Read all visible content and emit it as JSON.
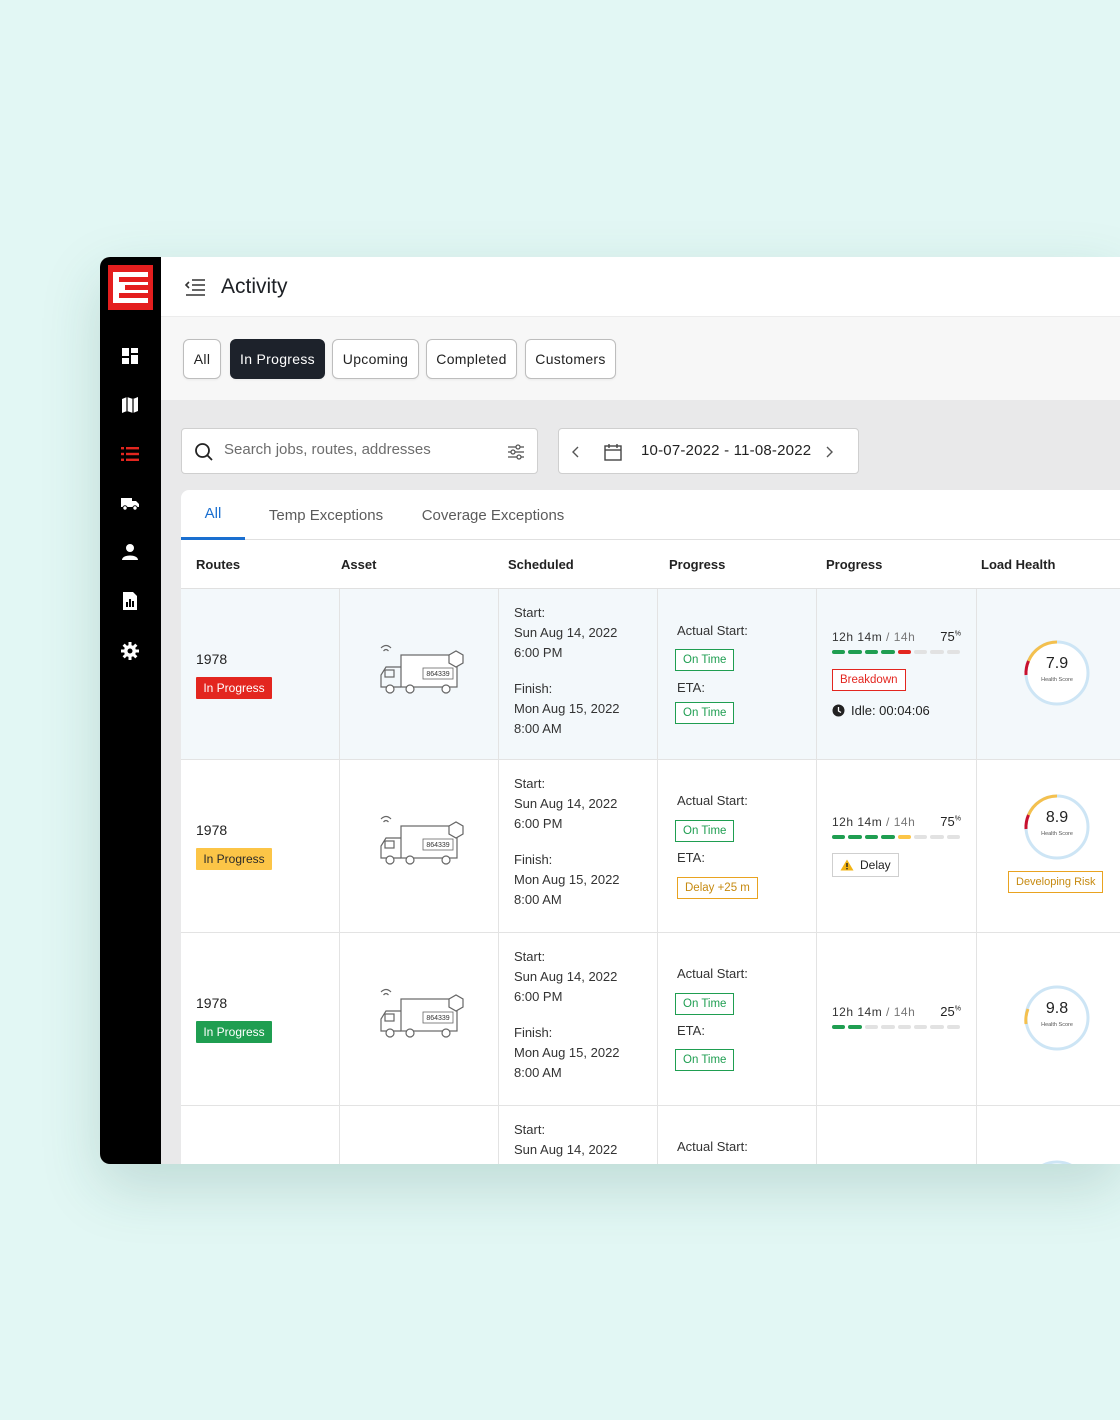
{
  "header": {
    "title": "Activity"
  },
  "filters": [
    "All",
    "In Progress",
    "Upcoming",
    "Completed",
    "Customers"
  ],
  "active_filter": "In Progress",
  "search": {
    "placeholder": "Search jobs, routes, addresses"
  },
  "date_range": "10-07-2022 - 11-08-2022",
  "tabs": [
    "All",
    "Temp Exceptions",
    "Coverage Exceptions"
  ],
  "active_tab": "All",
  "columns": [
    "Routes",
    "Asset",
    "Scheduled",
    "Progress",
    "Progress",
    "Load Health"
  ],
  "rows": [
    {
      "route": "1978",
      "status": "In Progress",
      "status_color": "#e3261f",
      "asset_id": "864339",
      "start_label": "Start:",
      "start_date": "Sun Aug 14, 2022",
      "start_time": "6:00 PM",
      "finish_label": "Finish:",
      "finish_date": "Mon Aug 15, 2022",
      "finish_time": "8:00 AM",
      "actual_start_label": "Actual Start:",
      "actual_start_status": "On Time",
      "eta_label": "ETA:",
      "eta_status": "On Time",
      "time_used": "12h 14m",
      "time_total": "14h",
      "percent": "75",
      "percent_sup": "%",
      "event": "Breakdown",
      "idle": "Idle: 00:04:06",
      "health_score": "7.9",
      "health_label": "Health Score"
    },
    {
      "route": "1978",
      "status": "In Progress",
      "status_color": "#fcc547",
      "asset_id": "864339",
      "start_label": "Start:",
      "start_date": "Sun Aug 14, 2022",
      "start_time": "6:00 PM",
      "finish_label": "Finish:",
      "finish_date": "Mon Aug 15, 2022",
      "finish_time": "8:00 AM",
      "actual_start_label": "Actual Start:",
      "actual_start_status": "On Time",
      "eta_label": "ETA:",
      "eta_status": "Delay +25 m",
      "time_used": "12h 14m",
      "time_total": "14h",
      "percent": "75",
      "percent_sup": "%",
      "event": "Delay",
      "health_score": "8.9",
      "health_label": "Health Score",
      "risk": "Developing Risk"
    },
    {
      "route": "1978",
      "status": "In Progress",
      "status_color": "#1f9e51",
      "asset_id": "864339",
      "start_label": "Start:",
      "start_date": "Sun Aug 14, 2022",
      "start_time": "6:00 PM",
      "finish_label": "Finish:",
      "finish_date": "Mon Aug 15, 2022",
      "finish_time": "8:00 AM",
      "actual_start_label": "Actual Start:",
      "actual_start_status": "On Time",
      "eta_label": "ETA:",
      "eta_status": "On Time",
      "time_used": "12h 14m",
      "time_total": "14h",
      "percent": "25",
      "percent_sup": "%",
      "health_score": "9.8",
      "health_label": "Health Score"
    },
    {
      "start_label": "Start:",
      "start_date": "Sun Aug 14, 2022",
      "actual_start_label": "Actual Start:"
    }
  ],
  "colors": {
    "accent": "#1a6fd0",
    "brand": "#e41e1e",
    "sidebar": "#000000",
    "active_pill": "#1d222b"
  },
  "sidebar_icons": [
    "dashboard-icon",
    "map-icon",
    "list-icon",
    "truck-icon",
    "user-icon",
    "report-icon",
    "settings-icon"
  ]
}
